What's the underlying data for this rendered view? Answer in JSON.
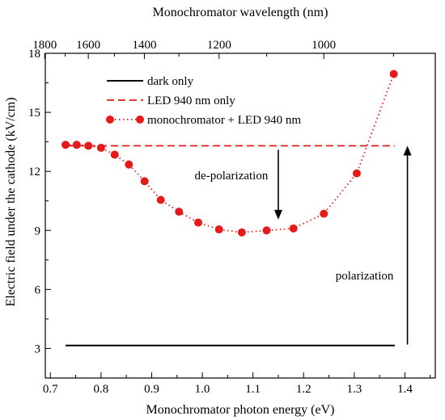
{
  "chart_data": {
    "type": "line",
    "xlabel": "Monochromator photon energy (eV)",
    "x2label": "Monochromator wavelength (nm)",
    "ylabel": "Electric field under the cathode (kV/cm)",
    "xlim": [
      0.69,
      1.46
    ],
    "ylim": [
      1.5,
      18
    ],
    "xticks": [
      0.7,
      0.8,
      0.9,
      1.0,
      1.1,
      1.2,
      1.3,
      1.4
    ],
    "x_tick_labels": [
      "0.7",
      "0.8",
      "0.9",
      "1.0",
      "1.1",
      "1.2",
      "1.3",
      "1.4"
    ],
    "yticks": [
      3,
      6,
      9,
      12,
      15,
      18
    ],
    "y_tick_labels": [
      "3",
      "6",
      "9",
      "12",
      "15",
      "18"
    ],
    "x2ticks_nm": [
      1800,
      1600,
      1400,
      1200,
      1000
    ],
    "x2_tick_labels": [
      "1800",
      "1600",
      "1400",
      "1200",
      "1000"
    ],
    "legend_position": "top-left",
    "series": [
      {
        "name": "dark only",
        "style": "solid",
        "color": "#000000",
        "x": [
          0.73,
          1.38
        ],
        "y": [
          3.15,
          3.15
        ]
      },
      {
        "name": "LED 940 nm only",
        "style": "dashed",
        "color": "#e31b1b",
        "x": [
          0.73,
          1.38
        ],
        "y": [
          13.3,
          13.3
        ]
      },
      {
        "name": "monochromator + LED 940 nm",
        "style": "dotted-markers",
        "color": "#e31b1b",
        "x": [
          0.73,
          0.752,
          0.775,
          0.8,
          0.827,
          0.855,
          0.886,
          0.918,
          0.954,
          0.992,
          1.033,
          1.078,
          1.127,
          1.18,
          1.24,
          1.305,
          1.378
        ],
        "y": [
          13.35,
          13.35,
          13.3,
          13.2,
          12.85,
          12.35,
          11.5,
          10.55,
          9.95,
          9.4,
          9.05,
          8.9,
          9.0,
          9.1,
          9.85,
          11.9,
          16.95
        ]
      }
    ],
    "annotations": [
      {
        "text": "de-polarization",
        "arrow": "down",
        "x": 1.15,
        "y_from": 13.1,
        "y_to": 9.55
      },
      {
        "text": "polarization",
        "arrow": "up",
        "x": 1.405,
        "y_from": 3.2,
        "y_to": 13.3
      }
    ]
  }
}
